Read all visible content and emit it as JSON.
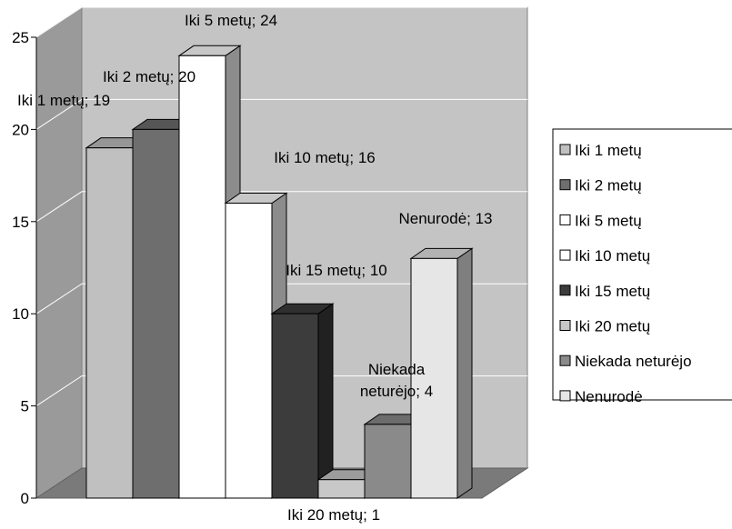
{
  "chart_data": {
    "type": "bar",
    "three_d": true,
    "categories": [
      "Iki 1 metų",
      "Iki 2 metų",
      "Iki 5 metų",
      "Iki 10 metų",
      "Iki 15 metų",
      "Iki 20 metų",
      "Niekada neturėjo",
      "Nenurodė"
    ],
    "values": [
      19,
      20,
      24,
      16,
      10,
      1,
      4,
      13
    ],
    "data_labels": [
      "Iki 1 metų; 19",
      "Iki 2 metų; 20",
      "Iki 5 metų; 24",
      "Iki 10 metų; 16",
      "Iki 15 metų; 10",
      "Iki 20 metų; 1",
      "Niekada neturėjo; 4",
      "Nenurodė; 13"
    ],
    "colors": [
      "#c0c0c0",
      "#6e6e6e",
      "#ffffff",
      "#ffffff",
      "#3c3c3c",
      "#c8c8c8",
      "#8a8a8a",
      "#e6e6e6"
    ],
    "y_ticks": [
      "0",
      "5",
      "10",
      "15",
      "20",
      "25"
    ],
    "ylim": [
      0,
      25
    ],
    "grid": true,
    "legend_position": "right",
    "legend": [
      "Iki 1 metų",
      "Iki 2 metų",
      "Iki 5 metų",
      "Iki 10 metų",
      "Iki 15 metų",
      "Iki 20 metų",
      "Niekada neturėjo",
      "Nenurodė"
    ],
    "title": "",
    "xlabel": "",
    "ylabel": ""
  }
}
